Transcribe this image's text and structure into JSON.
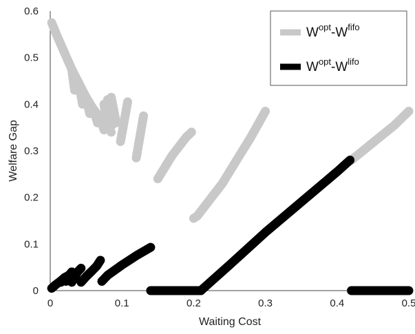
{
  "chart_data": {
    "type": "line",
    "title": "",
    "xlabel": "Waiting Cost",
    "ylabel": "Welfare Gap",
    "xlim": [
      0,
      0.5
    ],
    "ylim": [
      0,
      0.6
    ],
    "x_ticks": [
      "0",
      "0.1",
      "0.2",
      "0.3",
      "0.4",
      "0.5"
    ],
    "y_ticks": [
      "0",
      "0.1",
      "0.2",
      "0.3",
      "0.4",
      "0.5",
      "0.6"
    ],
    "grid": false,
    "legend_position": "top-right",
    "series": [
      {
        "name_base": "W",
        "name_sup1": "opt",
        "name_mid": "-W",
        "name_sup2": "fifo",
        "color": "#c8c8c8",
        "segments": [
          [
            [
              0.002,
              0.575
            ],
            [
              0.01,
              0.545
            ],
            [
              0.02,
              0.51
            ],
            [
              0.03,
              0.475
            ],
            [
              0.04,
              0.445
            ],
            [
              0.05,
              0.415
            ],
            [
              0.06,
              0.39
            ],
            [
              0.07,
              0.37
            ],
            [
              0.08,
              0.35
            ],
            [
              0.085,
              0.34
            ]
          ],
          [
            [
              0.03,
              0.475
            ],
            [
              0.034,
              0.43
            ]
          ],
          [
            [
              0.04,
              0.445
            ],
            [
              0.045,
              0.4
            ]
          ],
          [
            [
              0.05,
              0.415
            ],
            [
              0.055,
              0.38
            ]
          ],
          [
            [
              0.06,
              0.39
            ],
            [
              0.066,
              0.36
            ]
          ],
          [
            [
              0.07,
              0.37
            ],
            [
              0.075,
              0.345
            ]
          ],
          [
            [
              0.075,
              0.4
            ],
            [
              0.08,
              0.35
            ]
          ],
          [
            [
              0.08,
              0.41
            ],
            [
              0.086,
              0.355
            ]
          ],
          [
            [
              0.085,
              0.415
            ],
            [
              0.092,
              0.36
            ]
          ],
          [
            [
              0.098,
              0.32
            ],
            [
              0.108,
              0.405
            ]
          ],
          [
            [
              0.12,
              0.285
            ],
            [
              0.13,
              0.375
            ]
          ],
          [
            [
              0.15,
              0.24
            ],
            [
              0.16,
              0.265
            ],
            [
              0.17,
              0.29
            ],
            [
              0.18,
              0.31
            ],
            [
              0.19,
              0.33
            ],
            [
              0.197,
              0.34
            ]
          ],
          [
            [
              0.2,
              0.155
            ],
            [
              0.205,
              0.16
            ],
            [
              0.21,
              0.17
            ],
            [
              0.22,
              0.19
            ],
            [
              0.24,
              0.23
            ],
            [
              0.26,
              0.28
            ],
            [
              0.28,
              0.33
            ],
            [
              0.3,
              0.385
            ]
          ],
          [
            [
              0.42,
              0.28
            ],
            [
              0.44,
              0.305
            ],
            [
              0.46,
              0.33
            ],
            [
              0.48,
              0.355
            ],
            [
              0.5,
              0.385
            ]
          ]
        ]
      },
      {
        "name_base": "W",
        "name_sup1": "opt",
        "name_mid": "-W",
        "name_sup2": "lifo",
        "color": "#000000",
        "segments": [
          [
            [
              0.002,
              0.005
            ],
            [
              0.008,
              0.013
            ],
            [
              0.014,
              0.02
            ],
            [
              0.02,
              0.028
            ],
            [
              0.026,
              0.033
            ],
            [
              0.03,
              0.04
            ]
          ],
          [
            [
              0.015,
              0.018
            ],
            [
              0.02,
              0.025
            ]
          ],
          [
            [
              0.022,
              0.02
            ],
            [
              0.028,
              0.03
            ]
          ],
          [
            [
              0.03,
              0.018
            ],
            [
              0.038,
              0.04
            ],
            [
              0.043,
              0.048
            ]
          ],
          [
            [
              0.043,
              0.018
            ],
            [
              0.05,
              0.03
            ],
            [
              0.058,
              0.042
            ],
            [
              0.065,
              0.053
            ],
            [
              0.07,
              0.065
            ]
          ],
          [
            [
              0.072,
              0.02
            ],
            [
              0.08,
              0.033
            ],
            [
              0.1,
              0.055
            ],
            [
              0.12,
              0.075
            ],
            [
              0.14,
              0.093
            ]
          ],
          [
            [
              0.14,
              0.0
            ],
            [
              0.21,
              0.0
            ]
          ],
          [
            [
              0.21,
              0.0
            ],
            [
              0.25,
              0.055
            ],
            [
              0.3,
              0.125
            ],
            [
              0.35,
              0.19
            ],
            [
              0.4,
              0.255
            ],
            [
              0.418,
              0.28
            ]
          ],
          [
            [
              0.42,
              0.0
            ],
            [
              0.5,
              0.0
            ]
          ]
        ]
      }
    ]
  }
}
